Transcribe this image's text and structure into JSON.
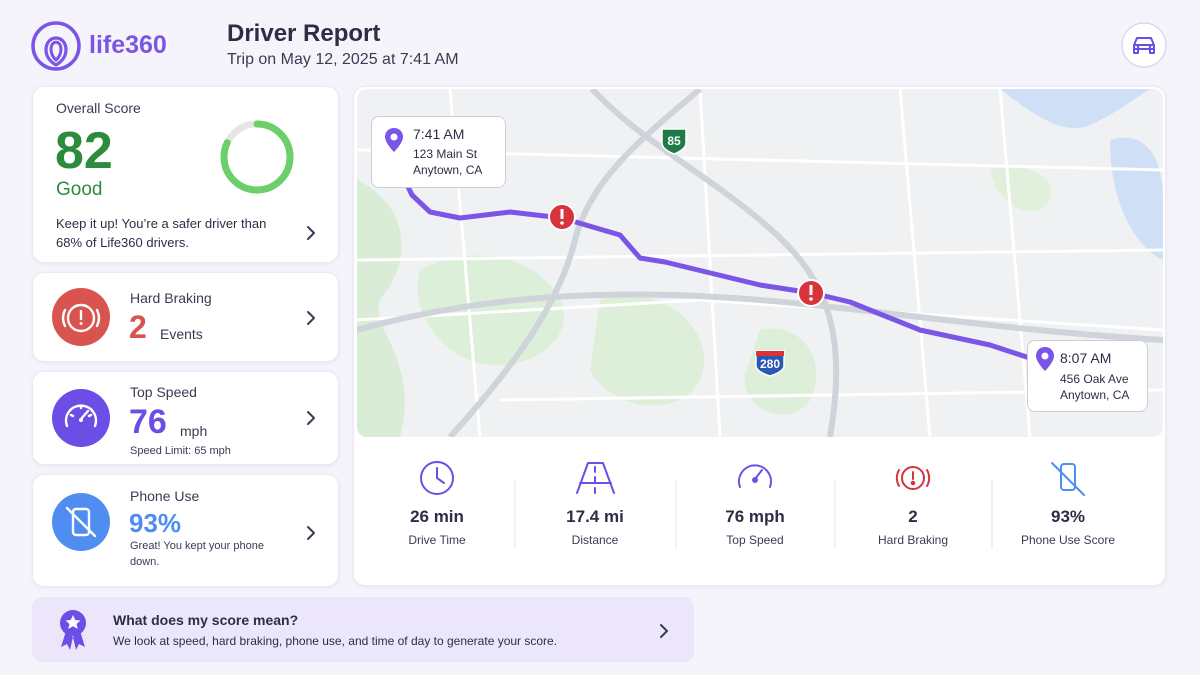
{
  "header": {
    "logo": "life360",
    "title": "Driver Report",
    "subtitle": "Trip on May 12, 2025 at 7:41 AM"
  },
  "score_card": {
    "label": "Overall Score",
    "score": 82,
    "rating": "Good",
    "message": "Keep it up! You’re a safer driver than 68% of Life360 drivers."
  },
  "metric_cards": [
    {
      "label": "Hard Braking",
      "value": "2",
      "unit": "Events"
    },
    {
      "label": "Top Speed",
      "value": "76",
      "unit": "mph",
      "note": "Speed Limit: 65 mph"
    },
    {
      "label": "Phone Use",
      "value": "93%",
      "note": "Great! You kept your phone down."
    }
  ],
  "map": {
    "start": {
      "time": "7:41 AM",
      "street": "123 Main St",
      "city": "Anytown, CA"
    },
    "end": {
      "time": "8:07 AM",
      "street": "456 Oak Ave",
      "city": "Anytown, CA"
    },
    "highways": [
      "85",
      "280"
    ]
  },
  "stats": [
    {
      "value": "26 min",
      "label": "Drive Time"
    },
    {
      "value": "17.4 mi",
      "label": "Distance"
    },
    {
      "value": "76 mph",
      "label": "Top Speed"
    },
    {
      "value": "2",
      "label": "Hard Braking"
    },
    {
      "value": "93%",
      "label": "Phone Use Score"
    }
  ],
  "footer": {
    "title": "What does my score mean?",
    "text": "We look at speed, hard braking, phone use, and time of day to generate your score."
  }
}
